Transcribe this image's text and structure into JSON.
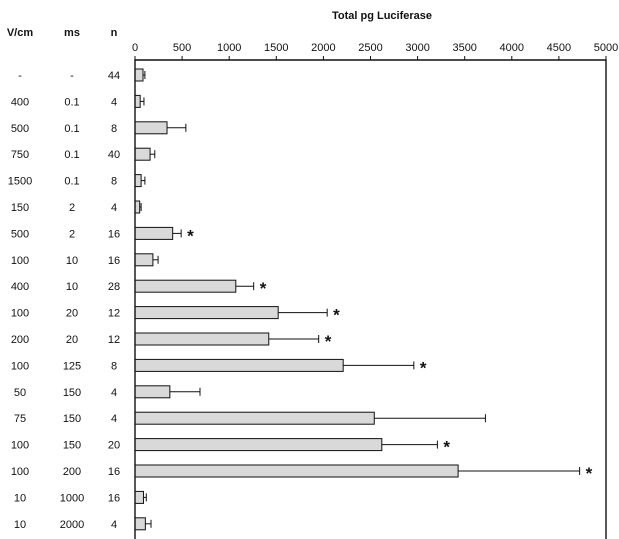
{
  "chart_data": {
    "type": "bar",
    "orientation": "horizontal",
    "title": "Total pg Luciferase",
    "table_headers": [
      "V/cm",
      "ms",
      "n"
    ],
    "rows": [
      {
        "vcm": "-",
        "ms": "-",
        "n": "44",
        "value": 85,
        "error": 20,
        "star": false
      },
      {
        "vcm": "400",
        "ms": "0.1",
        "n": "4",
        "value": 55,
        "error": 40,
        "star": false
      },
      {
        "vcm": "500",
        "ms": "0.1",
        "n": "8",
        "value": 340,
        "error": 200,
        "star": false
      },
      {
        "vcm": "750",
        "ms": "0.1",
        "n": "40",
        "value": 160,
        "error": 50,
        "star": false
      },
      {
        "vcm": "1500",
        "ms": "0.1",
        "n": "8",
        "value": 65,
        "error": 40,
        "star": false
      },
      {
        "vcm": "150",
        "ms": "2",
        "n": "4",
        "value": 50,
        "error": 15,
        "star": false
      },
      {
        "vcm": "500",
        "ms": "2",
        "n": "16",
        "value": 400,
        "error": 90,
        "star": true
      },
      {
        "vcm": "100",
        "ms": "10",
        "n": "16",
        "value": 190,
        "error": 55,
        "star": false
      },
      {
        "vcm": "400",
        "ms": "10",
        "n": "28",
        "value": 1070,
        "error": 190,
        "star": true
      },
      {
        "vcm": "100",
        "ms": "20",
        "n": "12",
        "value": 1520,
        "error": 520,
        "star": true
      },
      {
        "vcm": "200",
        "ms": "20",
        "n": "12",
        "value": 1420,
        "error": 530,
        "star": true
      },
      {
        "vcm": "100",
        "ms": "125",
        "n": "8",
        "value": 2210,
        "error": 750,
        "star": true
      },
      {
        "vcm": "50",
        "ms": "150",
        "n": "4",
        "value": 370,
        "error": 320,
        "star": false
      },
      {
        "vcm": "75",
        "ms": "150",
        "n": "4",
        "value": 2540,
        "error": 1180,
        "star": false
      },
      {
        "vcm": "100",
        "ms": "150",
        "n": "20",
        "value": 2620,
        "error": 590,
        "star": true
      },
      {
        "vcm": "100",
        "ms": "200",
        "n": "16",
        "value": 3430,
        "error": 1290,
        "star": true
      },
      {
        "vcm": "10",
        "ms": "1000",
        "n": "16",
        "value": 90,
        "error": 30,
        "star": false
      },
      {
        "vcm": "10",
        "ms": "2000",
        "n": "4",
        "value": 110,
        "error": 60,
        "star": false
      }
    ],
    "x_ticks": [
      "0",
      "500",
      "1000",
      "1500",
      "2000",
      "2500",
      "3000",
      "3500",
      "4000",
      "4500",
      "5000"
    ],
    "xlim": [
      0,
      5000
    ],
    "star_symbol": "*",
    "grid": false,
    "colors": {
      "bar_fill": "#d9d9d9",
      "outline": "#111111"
    }
  }
}
